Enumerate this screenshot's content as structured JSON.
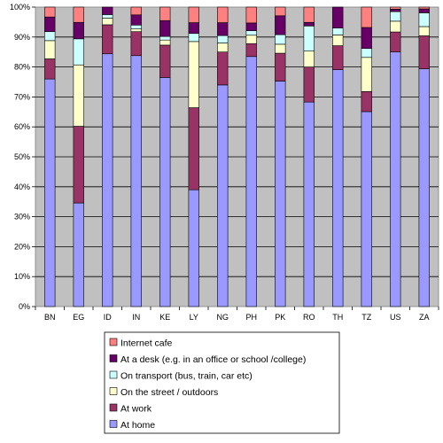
{
  "chart_data": {
    "type": "bar",
    "stacked": true,
    "percent_axis": true,
    "grid": true,
    "legend_position": "bottom",
    "ylim": [
      0,
      100
    ],
    "y_ticks": [
      "0%",
      "10%",
      "20%",
      "30%",
      "40%",
      "50%",
      "60%",
      "70%",
      "80%",
      "90%",
      "100%"
    ],
    "categories": [
      "BN",
      "EG",
      "ID",
      "IN",
      "KE",
      "LY",
      "NG",
      "PH",
      "PK",
      "RO",
      "TH",
      "TZ",
      "US",
      "ZA"
    ],
    "series": [
      {
        "name": "At home",
        "color": "#9999ff",
        "values": [
          76,
          34.6,
          84.4,
          83.8,
          76.5,
          39,
          74,
          83.5,
          75.3,
          68.3,
          79.1,
          65.1,
          85,
          79.4
        ]
      },
      {
        "name": "At work",
        "color": "#993366",
        "values": [
          6.7,
          25.6,
          9.7,
          8,
          10.8,
          27.4,
          11,
          4.3,
          9.3,
          11.7,
          8,
          6.7,
          6.7,
          11
        ]
      },
      {
        "name": "On the street / outdoors",
        "color": "#ffffcc",
        "values": [
          6.1,
          20.5,
          2.2,
          0.9,
          1.7,
          22.1,
          3,
          2.8,
          3,
          5.3,
          3.6,
          11.4,
          3.6,
          3.1
        ]
      },
      {
        "name": "On transport (bus, train, car etc)",
        "color": "#ccffff",
        "values": [
          3,
          8.7,
          1.2,
          1.3,
          1.2,
          2.7,
          2.5,
          1.5,
          3.2,
          8.4,
          2.3,
          3,
          3.2,
          4.6
        ]
      },
      {
        "name": "At a desk (e.g. in an office or school /college)",
        "color": "#660066",
        "values": [
          4.9,
          5.5,
          2.5,
          3.4,
          5.3,
          3.6,
          4.3,
          2.6,
          6.3,
          1.2,
          7,
          7,
          0.8,
          1.3
        ]
      },
      {
        "name": "Internet cafe",
        "color": "#ff8080",
        "values": [
          3.3,
          5.1,
          0,
          2.6,
          4.5,
          5.2,
          5.2,
          5.3,
          2.9,
          5.1,
          0,
          6.8,
          0.7,
          0.6
        ]
      }
    ],
    "legend_order": [
      5,
      4,
      3,
      2,
      1,
      0
    ]
  }
}
